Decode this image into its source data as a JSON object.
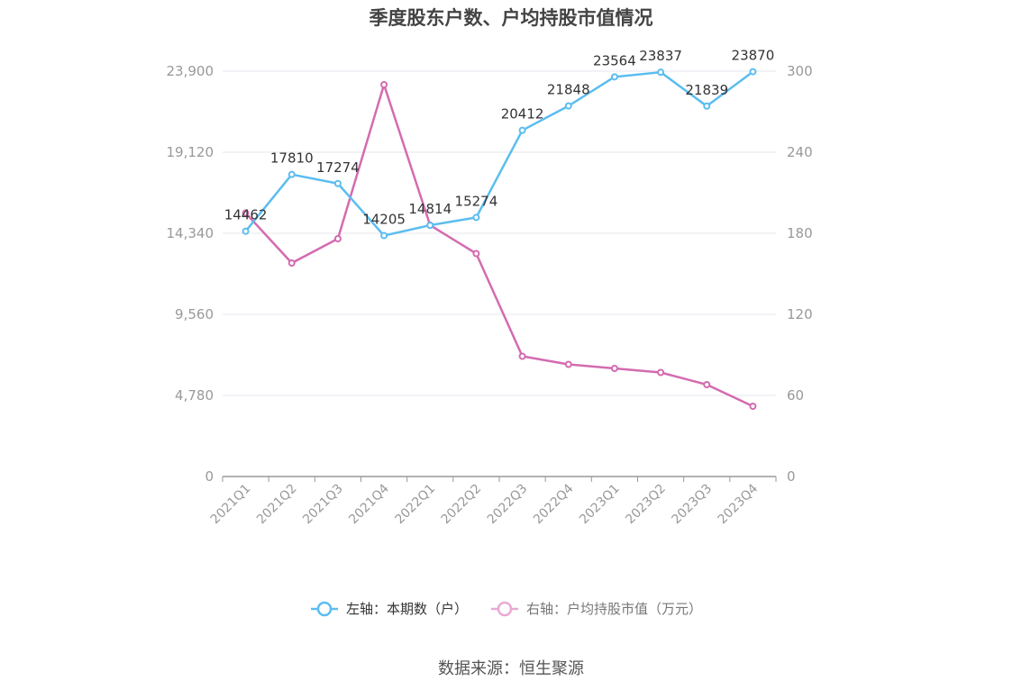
{
  "title": "季度股东户数、户均持股市值情况",
  "source": "数据来源：恒生聚源",
  "colors": {
    "left": "#5bbdf0",
    "right": "#d46bb0",
    "grid": "#e6e6ef",
    "axis": "#999999"
  },
  "chart_data": {
    "type": "line",
    "categories": [
      "2021Q1",
      "2021Q2",
      "2021Q3",
      "2021Q4",
      "2022Q1",
      "2022Q2",
      "2022Q3",
      "2022Q4",
      "2023Q1",
      "2023Q2",
      "2023Q3",
      "2023Q4"
    ],
    "left_axis": {
      "min": 0,
      "max": 23900,
      "ticks": [
        "0",
        "4,780",
        "9,560",
        "14,340",
        "19,120",
        "23,900"
      ],
      "tick_values": [
        0,
        4780,
        9560,
        14340,
        19120,
        23900
      ]
    },
    "right_axis": {
      "min": 0,
      "max": 300,
      "ticks": [
        "0",
        "60",
        "120",
        "180",
        "240",
        "300"
      ],
      "tick_values": [
        0,
        60,
        120,
        180,
        240,
        300
      ]
    },
    "series": [
      {
        "name": "左轴：本期数（户）",
        "axis": "left",
        "values": [
          14462,
          17810,
          17274,
          14205,
          14814,
          15274,
          20412,
          21848,
          23564,
          23837,
          21839,
          23870
        ],
        "labels": [
          "14462",
          "17810",
          "17274",
          "14205",
          "14814",
          "15274",
          "20412",
          "21848",
          "23564",
          "23837",
          "21839",
          "23870"
        ]
      },
      {
        "name": "右轴：户均持股市值（万元）",
        "axis": "right",
        "values": [
          195,
          158,
          176,
          290,
          186,
          165,
          89,
          83,
          80,
          77,
          68,
          52
        ]
      }
    ],
    "grid": true,
    "legend": "bottom-center"
  }
}
